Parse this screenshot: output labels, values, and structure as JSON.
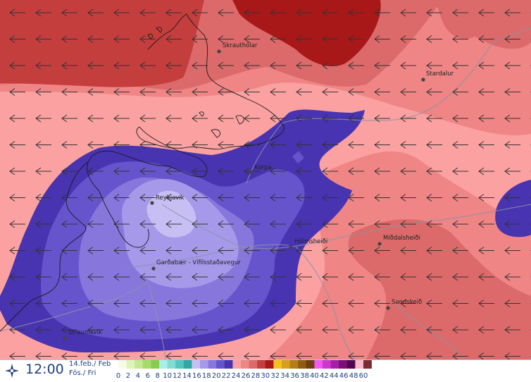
{
  "map": {
    "places": [
      {
        "name": "Skrauthólar",
        "id": "skrautholar"
      },
      {
        "name": "Stardalur",
        "id": "stardalur"
      },
      {
        "name": "Korpa",
        "id": "korpa"
      },
      {
        "name": "Reykjavík",
        "id": "reykjavik"
      },
      {
        "name": "Hólmsheiði",
        "id": "holmsheidi"
      },
      {
        "name": "Miðdalsheiði",
        "id": "middalsheidi"
      },
      {
        "name": "Garðabær - Vífilsstaðavegur",
        "id": "gardabaer"
      },
      {
        "name": "Sandskeið",
        "id": "sandskeid"
      },
      {
        "name": "Straumsvík",
        "id": "straumsvik"
      }
    ],
    "wind_direction": "from east"
  },
  "footer": {
    "time": "12:00",
    "date_line1": "14.feb./ Feb",
    "date_line2": "Fös./ Fri"
  },
  "scale": {
    "labels": [
      "0",
      "2",
      "4",
      "6",
      "8",
      "10",
      "12",
      "14",
      "16",
      "18",
      "20",
      "22",
      "24",
      "26",
      "28",
      "30",
      "32",
      "34",
      "36",
      "38",
      "40",
      "42",
      "44",
      "46",
      "48",
      "60"
    ],
    "colors": [
      "#f6fbe6",
      "#ddf5b6",
      "#c3ea90",
      "#a6dc6a",
      "#88cc4c",
      "#a8efe8",
      "#7fdcd5",
      "#55c5bf",
      "#2fa7a3",
      "#c7bff4",
      "#a699ea",
      "#8777dc",
      "#6654cc",
      "#4833b0",
      "#fba1a1",
      "#ef8585",
      "#dc6a6a",
      "#c43e3e",
      "#a91818",
      "#f4c21e",
      "#d79f1a",
      "#b57d16",
      "#8e5b12",
      "#6b3d0f",
      "#f358f0",
      "#cf36cb",
      "#a91ea8",
      "#7a0f78",
      "#540552",
      "#f7b8c8",
      "#7b2a33"
    ]
  }
}
